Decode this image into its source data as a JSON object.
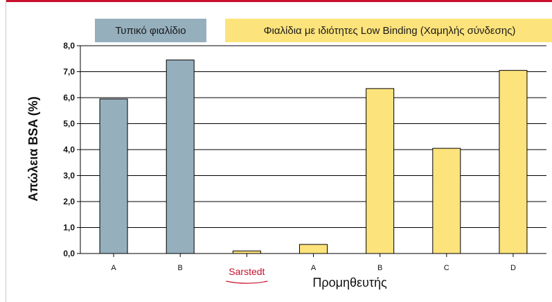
{
  "legend": {
    "standard": {
      "label": "Τυπικό φιαλίδιο",
      "color": "#95afbd"
    },
    "low_binding": {
      "label": "Φιαλίδια με ιδιότητες Low Binding (Χαμηλής σύνδεσης)",
      "color": "#fde37b"
    }
  },
  "chart_data": {
    "type": "bar",
    "ylabel": "Απώλεια BSA (%)",
    "xlabel": "Προμηθευτής",
    "ylim": [
      0,
      8
    ],
    "ytick_step": 1,
    "ytick_labels": [
      "0,0",
      "1,0",
      "2,0",
      "3,0",
      "4,0",
      "5,0",
      "6,0",
      "7,0",
      "8,0"
    ],
    "grid": true,
    "categories": [
      "A",
      "B",
      "Sarstedt",
      "A",
      "B",
      "C",
      "D"
    ],
    "highlight_category": "Sarstedt",
    "highlight_color": "#c8102e",
    "values": [
      5.95,
      7.45,
      0.1,
      0.35,
      6.35,
      4.05,
      7.05
    ],
    "groups": [
      "standard",
      "standard",
      "low_binding",
      "low_binding",
      "low_binding",
      "low_binding",
      "low_binding"
    ]
  }
}
